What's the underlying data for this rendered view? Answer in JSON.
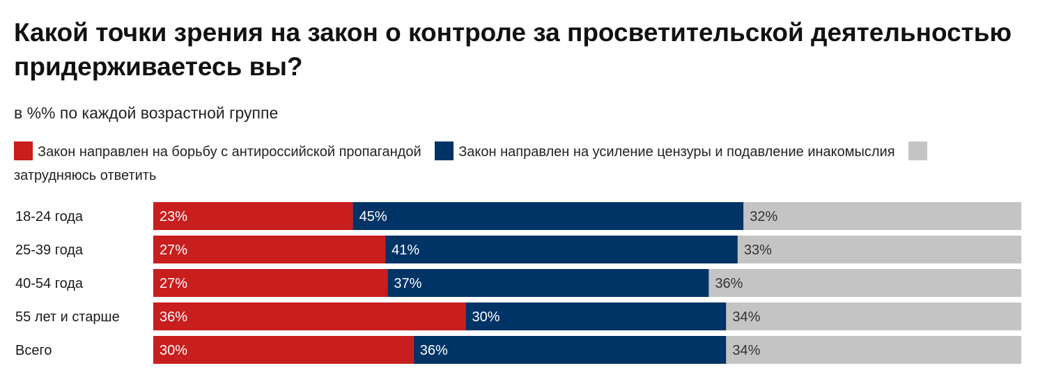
{
  "chart_data": {
    "type": "bar",
    "stacked": true,
    "orientation": "horizontal",
    "title": "Какой точки зрения на закон о контроле за просветительской деятельностью придерживаетесь вы?",
    "subtitle": "в %% по каждой возрастной группе",
    "legend_position": "top",
    "categories": [
      "18-24 года",
      "25-39 года",
      "40-54 года",
      "55 лет и старше",
      "Всего"
    ],
    "series": [
      {
        "name": "Закон направлен на борьбу с антироссийской пропагандой",
        "color": "#c81e1e",
        "label_color": "#ffffff",
        "values": [
          23,
          27,
          27,
          36,
          30
        ],
        "labels": [
          "23%",
          "27%",
          "27%",
          "36%",
          "30%"
        ]
      },
      {
        "name": "Закон направлен на усиление цензуры и подавление инакомыслия",
        "color": "#003366",
        "label_color": "#ffffff",
        "values": [
          45,
          41,
          37,
          30,
          36
        ],
        "labels": [
          "45%",
          "41%",
          "37%",
          "30%",
          "36%"
        ]
      },
      {
        "name": "затрудняюсь ответить",
        "color": "#c4c4c4",
        "label_color": "#333333",
        "values": [
          32,
          33,
          36,
          34,
          34
        ],
        "labels": [
          "32%",
          "33%",
          "36%",
          "34%",
          "34%"
        ]
      }
    ],
    "grid": false
  }
}
